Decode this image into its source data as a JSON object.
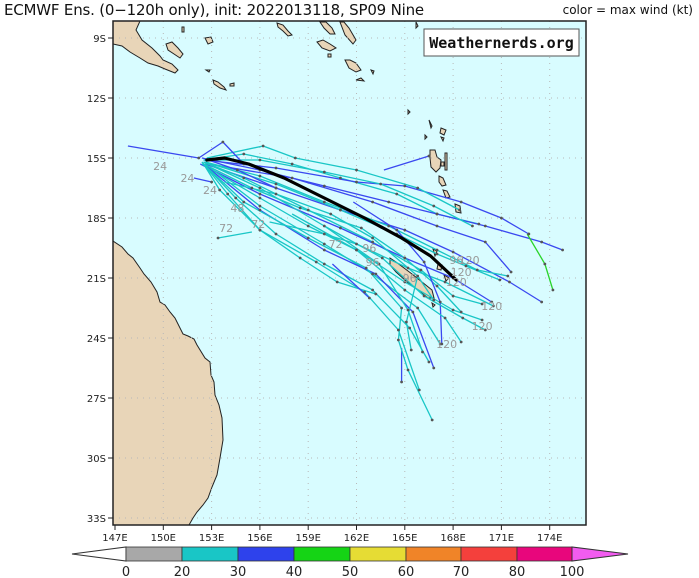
{
  "header": {
    "title": "ECMWF Ens. (0−120h only), init: 2022013118, SP09 Nine",
    "legend_note": "color = max wind (kt)"
  },
  "watermark": "Weathernerds.org",
  "map": {
    "extent": {
      "lon_min": 147,
      "lon_max": 176.5,
      "lat_min": -33.4,
      "lat_max": -8.1
    },
    "lon_ticks": [
      "147E",
      "150E",
      "153E",
      "156E",
      "159E",
      "162E",
      "165E",
      "168E",
      "171E",
      "174E"
    ],
    "lat_ticks": [
      "9S",
      "12S",
      "15S",
      "18S",
      "21S",
      "24S",
      "27S",
      "30S",
      "33S"
    ],
    "colors": {
      "ocean": "#d8fcff",
      "land": "#e8d5b8",
      "coast": "#222222",
      "grid": "#b8b8b8"
    },
    "forecast_hour_labels": [
      {
        "text": "24",
        "lon": 149.8,
        "lat": -15.4
      },
      {
        "text": "24",
        "lon": 151.5,
        "lat": -16.0
      },
      {
        "text": "24",
        "lon": 152.9,
        "lat": -16.6
      },
      {
        "text": "48",
        "lon": 154.6,
        "lat": -17.5
      },
      {
        "text": "72",
        "lon": 153.9,
        "lat": -18.5
      },
      {
        "text": "72",
        "lon": 155.9,
        "lat": -18.3
      },
      {
        "text": "72",
        "lon": 160.7,
        "lat": -19.3
      },
      {
        "text": "96",
        "lon": 162.8,
        "lat": -19.5
      },
      {
        "text": "96",
        "lon": 163.0,
        "lat": -20.2
      },
      {
        "text": "96",
        "lon": 165.3,
        "lat": -21.0
      },
      {
        "text": "96",
        "lon": 168.2,
        "lat": -20.1
      },
      {
        "text": "120",
        "lon": 169.0,
        "lat": -20.1
      },
      {
        "text": "120",
        "lon": 168.5,
        "lat": -20.7
      },
      {
        "text": "120",
        "lon": 168.2,
        "lat": -21.2
      },
      {
        "text": "120",
        "lon": 170.4,
        "lat": -22.4
      },
      {
        "text": "120",
        "lon": 169.8,
        "lat": -23.4
      },
      {
        "text": "120",
        "lon": 167.6,
        "lat": -24.3
      }
    ],
    "mean_track": [
      [
        152.7,
        -15.1
      ],
      [
        153.8,
        -15.0
      ],
      [
        155.3,
        -15.3
      ],
      [
        157.5,
        -16.0
      ],
      [
        160.0,
        -17.0
      ],
      [
        162.5,
        -18.0
      ],
      [
        164.8,
        -19.0
      ],
      [
        166.6,
        -19.9
      ],
      [
        168.2,
        -21.1
      ]
    ],
    "ensemble_tracks": [
      {
        "color": "#3a48f0",
        "pts": [
          [
            147.8,
            -14.4
          ],
          [
            152.2,
            -15.0
          ]
        ]
      },
      {
        "color": "#19c6c6",
        "pts": [
          [
            152.5,
            -15.1
          ],
          [
            155,
            -14.8
          ],
          [
            158,
            -15.3
          ],
          [
            161,
            -16.0
          ],
          [
            164.5,
            -16.8
          ],
          [
            167,
            -17.8
          ],
          [
            169.6,
            -18.3
          ]
        ]
      },
      {
        "color": "#3a48f0",
        "pts": [
          [
            152.4,
            -15.0
          ],
          [
            156,
            -15.6
          ],
          [
            160,
            -16.4
          ],
          [
            164,
            -17.2
          ],
          [
            167,
            -17.8
          ],
          [
            170,
            -18.4
          ],
          [
            173.5,
            -19.2
          ],
          [
            174.8,
            -19.6
          ]
        ]
      },
      {
        "color": "#3a48f0",
        "pts": [
          [
            152.5,
            -15.1
          ],
          [
            157,
            -15.5
          ],
          [
            162,
            -16.2
          ],
          [
            165,
            -16.4
          ],
          [
            168.5,
            -17.2
          ],
          [
            171,
            -18.0
          ],
          [
            172.7,
            -18.8
          ]
        ]
      },
      {
        "color": "#19c6c6",
        "pts": [
          [
            172.7,
            -18.8
          ],
          [
            172.7,
            -18.8
          ]
        ]
      },
      {
        "color": "#2ad42a",
        "pts": [
          [
            172.6,
            -18.8
          ],
          [
            173.7,
            -20.3
          ],
          [
            174.2,
            -21.6
          ]
        ]
      },
      {
        "color": "#3a48f0",
        "pts": [
          [
            152.8,
            -15.3
          ],
          [
            158,
            -16.0
          ],
          [
            163,
            -17.2
          ],
          [
            167,
            -18.4
          ],
          [
            170,
            -19.2
          ],
          [
            171.6,
            -20.7
          ]
        ]
      },
      {
        "color": "#3a48f0",
        "pts": [
          [
            152.6,
            -15.3
          ],
          [
            157,
            -16.5
          ],
          [
            161,
            -17.6
          ],
          [
            165,
            -18.6
          ],
          [
            168,
            -19.7
          ],
          [
            171.5,
            -21.2
          ],
          [
            173.5,
            -22.2
          ]
        ]
      },
      {
        "color": "#19c6c6",
        "pts": [
          [
            152.6,
            -15.2
          ],
          [
            156,
            -15.9
          ],
          [
            160,
            -17.2
          ],
          [
            164,
            -18.4
          ],
          [
            167,
            -19.6
          ],
          [
            169.5,
            -20.6
          ],
          [
            171.4,
            -20.9
          ]
        ]
      },
      {
        "color": "#19c6c6",
        "pts": [
          [
            152.5,
            -15.2
          ],
          [
            155,
            -16.0
          ],
          [
            159,
            -17.6
          ],
          [
            163,
            -19.2
          ],
          [
            166,
            -20.6
          ],
          [
            168,
            -21.9
          ],
          [
            169.8,
            -22.3
          ]
        ]
      },
      {
        "color": "#3a48f0",
        "pts": [
          [
            152.3,
            -15.3
          ],
          [
            156,
            -16.8
          ],
          [
            161,
            -18.5
          ],
          [
            165,
            -20.0
          ],
          [
            168,
            -21.0
          ],
          [
            170.4,
            -22.2
          ]
        ]
      },
      {
        "color": "#19c6c6",
        "pts": [
          [
            152.4,
            -15.3
          ],
          [
            156,
            -17.0
          ],
          [
            159,
            -18.4
          ],
          [
            162,
            -19.6
          ],
          [
            165,
            -21.2
          ],
          [
            168,
            -22.6
          ],
          [
            169.8,
            -23.1
          ]
        ]
      },
      {
        "color": "#19c6c6",
        "pts": [
          [
            152.6,
            -15.3
          ],
          [
            156,
            -17.4
          ],
          [
            160,
            -19.3
          ],
          [
            163,
            -20.8
          ],
          [
            165.8,
            -22.5
          ],
          [
            167.2,
            -24.3
          ]
        ]
      },
      {
        "color": "#19c6c6",
        "pts": [
          [
            152.4,
            -15.2
          ],
          [
            154.5,
            -17.0
          ],
          [
            157,
            -18.8
          ],
          [
            160,
            -20.3
          ],
          [
            163,
            -21.6
          ],
          [
            165.3,
            -23.5
          ],
          [
            166.5,
            -25.2
          ]
        ]
      },
      {
        "color": "#3a48f0",
        "pts": [
          [
            152.5,
            -15.3
          ],
          [
            156,
            -17.6
          ],
          [
            160,
            -19.6
          ],
          [
            163.2,
            -20.8
          ],
          [
            165.5,
            -22.7
          ],
          [
            166.8,
            -25.5
          ]
        ]
      },
      {
        "color": "#19c6c6",
        "pts": [
          [
            152.5,
            -15.3
          ],
          [
            153.5,
            -16.6
          ],
          [
            156,
            -18.6
          ],
          [
            159.5,
            -20.2
          ],
          [
            162.5,
            -21.7
          ],
          [
            164.6,
            -23.6
          ],
          [
            165.9,
            -26.6
          ]
        ]
      },
      {
        "color": "#3a48f0",
        "pts": [
          [
            164.8,
            -24.5
          ],
          [
            164.8,
            -26.2
          ]
        ]
      },
      {
        "color": "#19c6c6",
        "pts": [
          [
            152.5,
            -15.3
          ],
          [
            155,
            -17.2
          ],
          [
            159,
            -19.0
          ],
          [
            162.6,
            -20.5
          ],
          [
            164.8,
            -22.5
          ],
          [
            164.6,
            -24.1
          ],
          [
            165.2,
            -25.6
          ],
          [
            166.7,
            -28.1
          ]
        ]
      },
      {
        "color": "#19c6c6",
        "pts": [
          [
            152.5,
            -15.2
          ],
          [
            156,
            -16.5
          ],
          [
            160,
            -18.4
          ],
          [
            163.4,
            -20.3
          ],
          [
            165.2,
            -22.6
          ],
          [
            166.1,
            -24.7
          ]
        ]
      },
      {
        "color": "#19c6c6",
        "pts": [
          [
            152.6,
            -15.2
          ],
          [
            157,
            -16.3
          ],
          [
            161,
            -17.6
          ],
          [
            164.5,
            -18.8
          ],
          [
            167,
            -19.8
          ],
          [
            168.8,
            -20.4
          ],
          [
            170.9,
            -21.1
          ]
        ]
      },
      {
        "color": "#19c6c6",
        "pts": [
          [
            152.5,
            -15.1
          ],
          [
            156,
            -15.1
          ],
          [
            160,
            -15.7
          ],
          [
            163.5,
            -16.3
          ],
          [
            166.8,
            -17.4
          ],
          [
            169.2,
            -18.4
          ]
        ]
      },
      {
        "color": "#19c6c6",
        "pts": [
          [
            152.7,
            -15.0
          ],
          [
            156.2,
            -14.4
          ],
          [
            158.2,
            -15.0
          ],
          [
            162,
            -15.6
          ],
          [
            165.8,
            -16.5
          ],
          [
            168.4,
            -17.6
          ]
        ]
      },
      {
        "color": "#3a48f0",
        "pts": [
          [
            152.2,
            -15.0
          ],
          [
            153.7,
            -14.2
          ],
          [
            155.0,
            -15.3
          ]
        ]
      },
      {
        "color": "#3a48f0",
        "pts": [
          [
            152.8,
            -15.1
          ],
          [
            154.6,
            -15.6
          ],
          [
            157,
            -16.5
          ]
        ]
      },
      {
        "color": "#3a48f0",
        "pts": [
          [
            151.9,
            -16.0
          ],
          [
            153.0,
            -16.2
          ]
        ]
      },
      {
        "color": "#3a48f0",
        "pts": [
          [
            163.7,
            -15.6
          ],
          [
            166.5,
            -14.9
          ]
        ]
      },
      {
        "color": "#19c6c6",
        "pts": [
          [
            152.5,
            -15.3
          ],
          [
            154,
            -16.8
          ],
          [
            156,
            -18.6
          ],
          [
            158.5,
            -20.0
          ],
          [
            160.8,
            -21.2
          ],
          [
            163.2,
            -21.8
          ]
        ]
      },
      {
        "color": "#3a48f0",
        "pts": [
          [
            160.5,
            -20.3
          ],
          [
            162.8,
            -22.0
          ]
        ]
      },
      {
        "color": "#19c6c6",
        "pts": [
          [
            152.5,
            -15.3
          ],
          [
            155.5,
            -16.5
          ],
          [
            158.5,
            -17.5
          ],
          [
            162.3,
            -18.5
          ],
          [
            165,
            -20.0
          ],
          [
            167,
            -21.4
          ],
          [
            168.5,
            -22.7
          ]
        ]
      },
      {
        "color": "#19c6c6",
        "pts": [
          [
            155.5,
            -18.7
          ],
          [
            153.4,
            -19.0
          ]
        ]
      },
      {
        "color": "#19c6c6",
        "pts": [
          [
            156.6,
            -18.2
          ],
          [
            160,
            -18.8
          ],
          [
            162,
            -19.3
          ],
          [
            165.2,
            -20.5
          ],
          [
            167.5,
            -21.2
          ],
          [
            170.5,
            -22.4
          ]
        ]
      },
      {
        "color": "#19c6c6",
        "pts": [
          [
            153.8,
            -16.2
          ],
          [
            157,
            -16.8
          ],
          [
            160.4,
            -17.8
          ],
          [
            163,
            -19.0
          ],
          [
            165.8,
            -20.9
          ],
          [
            166.8,
            -22.1
          ]
        ]
      },
      {
        "color": "#19c6c6",
        "pts": [
          [
            165.8,
            -20.9
          ],
          [
            165.1,
            -23.2
          ],
          [
            165.4,
            -24.6
          ]
        ]
      },
      {
        "color": "#3a48f0",
        "pts": [
          [
            161.8,
            -17.2
          ],
          [
            164.5,
            -18.6
          ],
          [
            166.2,
            -20.2
          ],
          [
            167.2,
            -22.2
          ],
          [
            167.3,
            -24.3
          ]
        ]
      },
      {
        "color": "#19c6c6",
        "pts": [
          [
            158,
            -17.8
          ],
          [
            162,
            -19.6
          ],
          [
            165,
            -21.6
          ],
          [
            167.5,
            -23.0
          ],
          [
            168.5,
            -24.2
          ]
        ]
      },
      {
        "color": "#19c6c6",
        "pts": [
          [
            160,
            -18.4
          ],
          [
            163.6,
            -20.0
          ],
          [
            166.2,
            -21.9
          ],
          [
            168.6,
            -23.0
          ],
          [
            170.0,
            -23.6
          ]
        ]
      }
    ]
  },
  "colorbar": {
    "bins": [
      {
        "min": 0,
        "max": 20,
        "color": "#a8a8a8"
      },
      {
        "min": 20,
        "max": 30,
        "color": "#19c6c6"
      },
      {
        "min": 30,
        "max": 40,
        "color": "#2e42ec"
      },
      {
        "min": 40,
        "max": 50,
        "color": "#15d415"
      },
      {
        "min": 50,
        "max": 60,
        "color": "#e6dc34"
      },
      {
        "min": 60,
        "max": 70,
        "color": "#f08428"
      },
      {
        "min": 70,
        "max": 80,
        "color": "#f4403c"
      },
      {
        "min": 80,
        "max": 100,
        "color": "#e8067c"
      }
    ],
    "under_color": "#ffffff",
    "over_color": "#f25cf0",
    "labels": [
      "0",
      "20",
      "30",
      "40",
      "50",
      "60",
      "70",
      "80",
      "100"
    ]
  }
}
